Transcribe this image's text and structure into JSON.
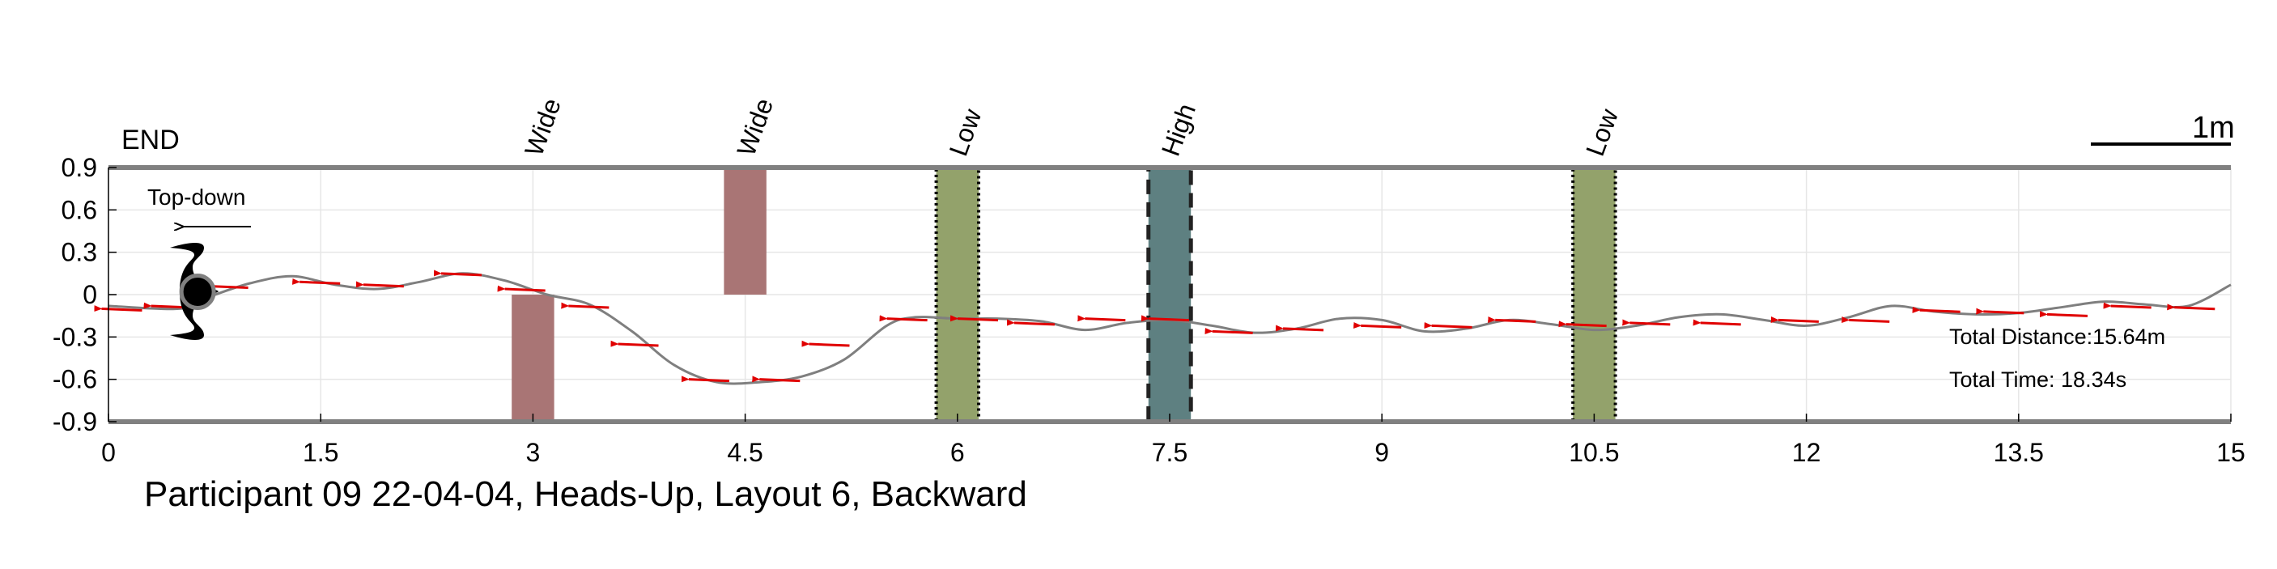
{
  "chart_data": {
    "type": "line",
    "title": "Participant 09 22-04-04, Heads-Up, Layout 6, Backward",
    "xlabel": "",
    "ylabel": "",
    "xlim": [
      0,
      15
    ],
    "ylim": [
      -0.9,
      0.9
    ],
    "xticks": [
      0,
      1.5,
      3,
      4.5,
      6,
      7.5,
      9,
      10.5,
      12,
      13.5,
      15
    ],
    "xtick_labels": [
      "0",
      "1.5",
      "3",
      "4.5",
      "6",
      "7.5",
      "9",
      "10.5",
      "12",
      "13.5",
      "15"
    ],
    "yticks": [
      0.9,
      0.6,
      0.3,
      0,
      -0.3,
      -0.6,
      -0.9
    ],
    "ytick_labels": [
      "0.9",
      "0.6",
      "0.3",
      "0",
      "-0.3",
      "-0.6",
      "-0.9"
    ],
    "grid": true,
    "end_label": "END",
    "view_label": "Top-down",
    "scale_bar_label": "1m",
    "total_distance_text": "Total Distance:15.64m",
    "total_time_text": "Total Time: 18.34s",
    "path": {
      "x": [
        0,
        0.5,
        0.7,
        1.0,
        1.3,
        1.6,
        1.9,
        2.2,
        2.5,
        2.8,
        3.1,
        3.4,
        3.7,
        4.0,
        4.3,
        4.6,
        4.9,
        5.2,
        5.5,
        5.7,
        6.0,
        6.3,
        6.6,
        6.9,
        7.2,
        7.5,
        7.8,
        8.1,
        8.4,
        8.7,
        9.0,
        9.3,
        9.6,
        9.9,
        10.2,
        10.5,
        10.8,
        11.1,
        11.4,
        11.7,
        12.0,
        12.3,
        12.6,
        12.9,
        13.2,
        13.5,
        13.8,
        14.1,
        14.4,
        14.7,
        15.0
      ],
      "y": [
        -0.08,
        -0.1,
        -0.02,
        0.08,
        0.13,
        0.07,
        0.04,
        0.09,
        0.15,
        0.1,
        0.0,
        -0.07,
        -0.26,
        -0.5,
        -0.62,
        -0.62,
        -0.58,
        -0.46,
        -0.22,
        -0.16,
        -0.17,
        -0.17,
        -0.19,
        -0.25,
        -0.2,
        -0.18,
        -0.22,
        -0.27,
        -0.24,
        -0.17,
        -0.18,
        -0.26,
        -0.24,
        -0.18,
        -0.21,
        -0.25,
        -0.22,
        -0.16,
        -0.14,
        -0.18,
        -0.22,
        -0.16,
        -0.08,
        -0.12,
        -0.14,
        -0.13,
        -0.09,
        -0.05,
        -0.07,
        -0.08,
        0.07
      ]
    },
    "direction_arrows": {
      "x": [
        0.1,
        0.45,
        0.85,
        1.5,
        1.95,
        2.5,
        2.95,
        3.4,
        3.75,
        4.25,
        4.75,
        5.1,
        5.65,
        6.15,
        6.55,
        7.05,
        7.5,
        7.95,
        8.45,
        9.0,
        9.5,
        9.95,
        10.45,
        10.9,
        11.4,
        11.95,
        12.45,
        12.95,
        13.4,
        13.85,
        14.3,
        14.75
      ],
      "y": [
        -0.1,
        -0.08,
        0.06,
        0.09,
        0.07,
        0.15,
        0.04,
        -0.08,
        -0.35,
        -0.6,
        -0.6,
        -0.35,
        -0.17,
        -0.17,
        -0.2,
        -0.17,
        -0.17,
        -0.26,
        -0.24,
        -0.22,
        -0.22,
        -0.18,
        -0.21,
        -0.2,
        -0.2,
        -0.18,
        -0.18,
        -0.11,
        -0.12,
        -0.14,
        -0.08,
        -0.09
      ]
    },
    "obstacles": [
      {
        "label": "Wide",
        "x0": 2.85,
        "x1": 3.15,
        "y0": -0.9,
        "y1": 0.0,
        "color": "#A97575",
        "border": "none"
      },
      {
        "label": "Wide",
        "x0": 4.35,
        "x1": 4.65,
        "y0": 0.0,
        "y1": 0.9,
        "color": "#A97575",
        "border": "none"
      },
      {
        "label": "Low",
        "x0": 5.85,
        "x1": 6.15,
        "y0": -0.9,
        "y1": 0.9,
        "color": "#93A26B",
        "border": "dotted"
      },
      {
        "label": "High",
        "x0": 7.35,
        "x1": 7.65,
        "y0": -0.9,
        "y1": 0.9,
        "color": "#5E8081",
        "border": "dashed"
      },
      {
        "label": "Low",
        "x0": 10.35,
        "x1": 10.65,
        "y0": -0.9,
        "y1": 0.9,
        "color": "#93A26B",
        "border": "dotted"
      }
    ],
    "walker_marker": {
      "x": 0.63,
      "y": 0.02
    },
    "colors": {
      "path": "#7F7F7F",
      "arrow": "#E00000",
      "boundary": "#808080",
      "grid": "#E6E6E6"
    }
  }
}
